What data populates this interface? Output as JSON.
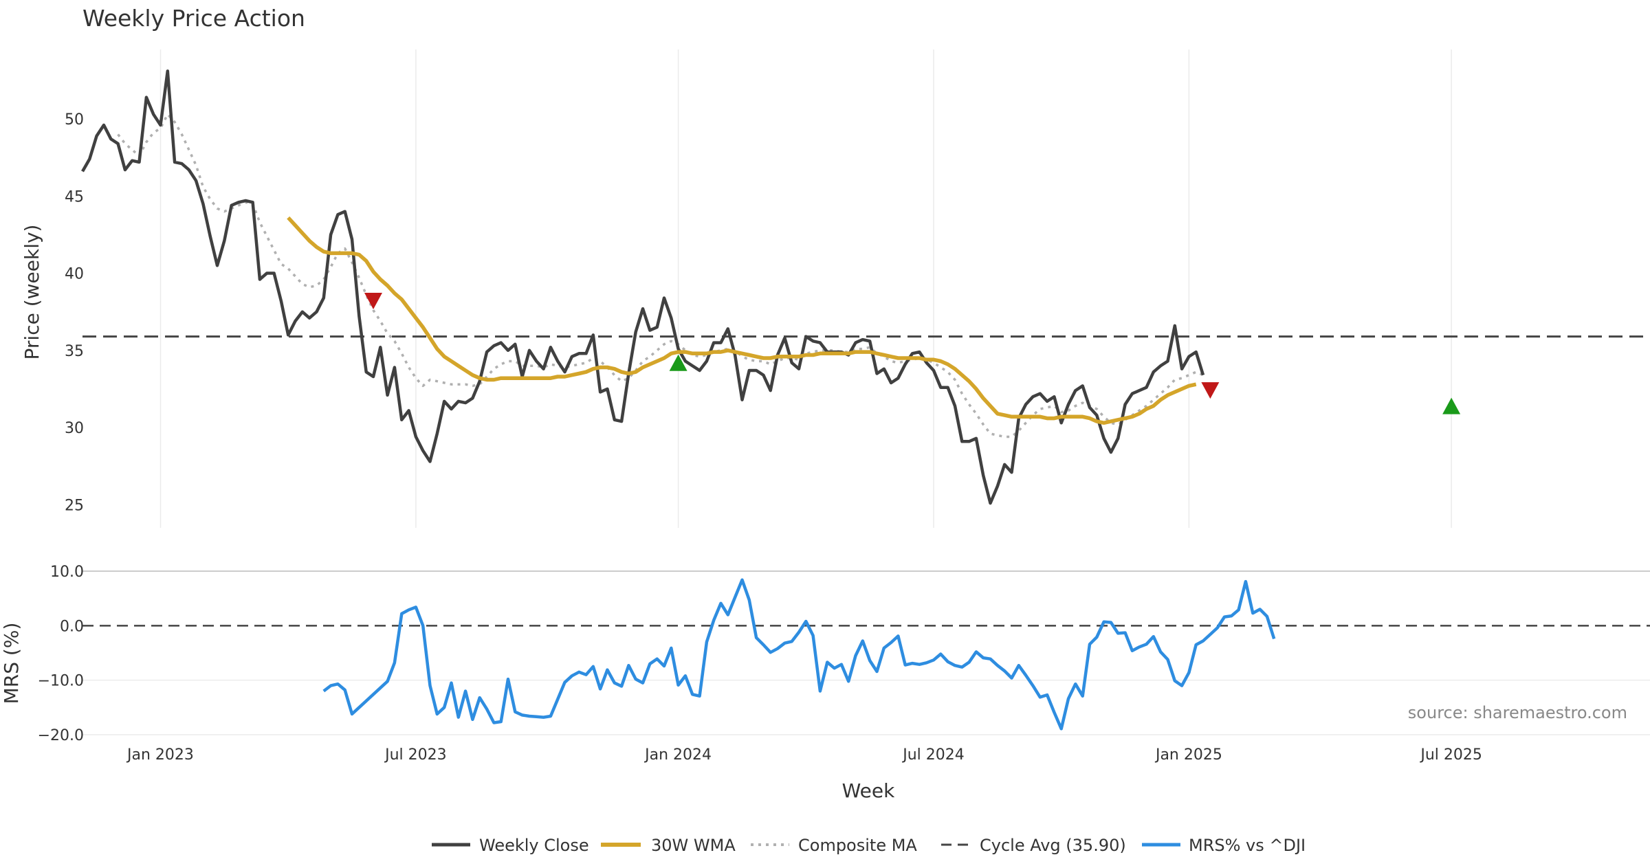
{
  "chart_data": {
    "type": "line",
    "title": "Weekly Price Action",
    "xlabel": "Week",
    "x_ticks": [
      "Jan 2023",
      "Jul 2023",
      "Jan 2024",
      "Jul 2024",
      "Jan 2025",
      "Jul 2025"
    ],
    "x_tick_weeks": [
      11,
      47,
      84,
      120,
      156,
      193
    ],
    "x_range": [
      0,
      221
    ],
    "price_panel": {
      "ylabel": "Price (weekly)",
      "ylim": [
        23.5,
        54.5
      ],
      "yticks": [
        "25",
        "30",
        "35",
        "40",
        "45",
        "50"
      ],
      "ytick_values": [
        25,
        30,
        35,
        40,
        45,
        50
      ],
      "series": [
        {
          "name": "Weekly Close",
          "color": "#404040",
          "values": [
            46.6,
            47.4,
            48.9,
            49.6,
            48.7,
            48.4,
            46.7,
            47.3,
            47.2,
            51.4,
            50.3,
            49.6,
            53.1,
            47.2,
            47.1,
            46.7,
            46.0,
            44.5,
            42.4,
            40.5,
            42.1,
            44.4,
            44.6,
            44.7,
            44.6,
            39.6,
            40.0,
            40.0,
            38.2,
            36.0,
            36.9,
            37.5,
            37.1,
            37.5,
            38.4,
            42.5,
            43.8,
            44.0,
            42.2,
            37.2,
            33.6,
            33.3,
            35.2,
            32.1,
            33.9,
            30.5,
            31.1,
            29.4,
            28.5,
            27.8,
            29.6,
            31.7,
            31.2,
            31.7,
            31.6,
            31.9,
            33.0,
            34.9,
            35.3,
            35.5,
            35.0,
            35.4,
            33.3,
            35.0,
            34.3,
            33.8,
            35.2,
            34.3,
            33.6,
            34.6,
            34.8,
            34.8,
            36.0,
            32.3,
            32.5,
            30.5,
            30.4,
            33.5,
            36.2,
            37.7,
            36.3,
            36.5,
            38.4,
            37.1,
            35.1,
            34.3,
            34.0,
            33.7,
            34.3,
            35.5,
            35.5,
            36.4,
            34.7,
            31.8,
            33.7,
            33.7,
            33.4,
            32.4,
            34.7,
            35.8,
            34.2,
            33.8,
            35.9,
            35.6,
            35.5,
            34.9,
            34.9,
            34.9,
            34.7,
            35.5,
            35.7,
            35.6,
            33.5,
            33.8,
            32.9,
            33.2,
            34.1,
            34.8,
            34.9,
            34.2,
            33.7,
            32.6,
            32.6,
            31.4,
            29.1,
            29.1,
            29.3,
            26.9,
            25.1,
            26.2,
            27.6,
            27.1,
            30.6,
            31.5,
            32.0,
            32.2,
            31.7,
            32.0,
            30.3,
            31.5,
            32.4,
            32.7,
            31.3,
            30.8,
            29.3,
            28.4,
            29.3,
            31.5,
            32.2,
            32.4,
            32.6,
            33.6,
            34.0,
            34.3,
            36.6,
            33.8,
            34.6,
            34.9,
            33.4
          ]
        },
        {
          "name": "30W WMA",
          "color": "#d4a52a",
          "values": [
            null,
            null,
            null,
            null,
            null,
            null,
            null,
            null,
            null,
            null,
            null,
            null,
            null,
            null,
            null,
            null,
            null,
            null,
            null,
            null,
            null,
            null,
            null,
            null,
            null,
            null,
            null,
            null,
            null,
            43.6,
            43.1,
            42.6,
            42.1,
            41.7,
            41.4,
            41.3,
            41.3,
            41.3,
            41.3,
            41.2,
            40.8,
            40.1,
            39.6,
            39.2,
            38.7,
            38.3,
            37.7,
            37.1,
            36.5,
            35.8,
            35.1,
            34.6,
            34.3,
            34.0,
            33.7,
            33.4,
            33.2,
            33.1,
            33.1,
            33.2,
            33.2,
            33.2,
            33.2,
            33.2,
            33.2,
            33.2,
            33.2,
            33.3,
            33.3,
            33.4,
            33.5,
            33.6,
            33.8,
            33.9,
            33.9,
            33.8,
            33.6,
            33.5,
            33.6,
            33.9,
            34.1,
            34.3,
            34.5,
            34.8,
            34.9,
            34.9,
            34.8,
            34.8,
            34.8,
            34.9,
            34.9,
            35.0,
            34.9,
            34.8,
            34.7,
            34.6,
            34.5,
            34.5,
            34.6,
            34.6,
            34.6,
            34.6,
            34.7,
            34.7,
            34.8,
            34.8,
            34.8,
            34.8,
            34.8,
            34.9,
            34.9,
            34.9,
            34.8,
            34.7,
            34.6,
            34.5,
            34.5,
            34.5,
            34.5,
            34.4,
            34.4,
            34.3,
            34.1,
            33.8,
            33.4,
            33.0,
            32.5,
            31.9,
            31.4,
            30.9,
            30.8,
            30.7,
            30.7,
            30.7,
            30.7,
            30.7,
            30.6,
            30.6,
            30.7,
            30.7,
            30.7,
            30.7,
            30.6,
            30.4,
            30.3,
            30.4,
            30.5,
            30.6,
            30.7,
            30.9,
            31.2,
            31.4,
            31.8,
            32.1,
            32.3,
            32.5,
            32.7,
            32.8
          ]
        },
        {
          "name": "Composite MA",
          "color": "#b0b0b0",
          "values": [
            null,
            null,
            null,
            null,
            null,
            49.0,
            48.4,
            48.0,
            47.6,
            48.5,
            49.1,
            49.4,
            50.3,
            49.8,
            49.0,
            48.0,
            47.0,
            45.6,
            44.8,
            44.2,
            44.0,
            44.2,
            44.4,
            44.6,
            44.5,
            43.3,
            42.4,
            41.5,
            40.6,
            40.3,
            39.8,
            39.3,
            39.1,
            39.2,
            39.6,
            40.4,
            41.3,
            41.6,
            40.7,
            39.7,
            38.6,
            37.6,
            36.9,
            36.1,
            35.6,
            34.8,
            33.9,
            33.2,
            32.7,
            33.1,
            33.0,
            32.9,
            32.8,
            32.8,
            32.8,
            32.7,
            32.8,
            33.3,
            33.8,
            34.1,
            34.3,
            34.3,
            34.0,
            34.0,
            34.0,
            33.9,
            34.1,
            34.0,
            33.9,
            34.0,
            34.1,
            34.2,
            34.5,
            34.3,
            33.9,
            33.4,
            33.0,
            33.2,
            33.7,
            34.3,
            34.6,
            35.0,
            35.4,
            35.6,
            35.4,
            35.0,
            34.7,
            34.6,
            34.7,
            34.9,
            35.0,
            35.1,
            35.0,
            34.6,
            34.4,
            34.3,
            34.3,
            34.1,
            34.3,
            34.5,
            34.5,
            34.4,
            34.8,
            34.9,
            35.0,
            35.0,
            35.0,
            34.9,
            34.9,
            35.1,
            35.1,
            35.2,
            34.8,
            34.6,
            34.3,
            34.2,
            34.3,
            34.4,
            34.5,
            34.4,
            34.2,
            33.9,
            33.6,
            33.1,
            32.2,
            31.5,
            30.9,
            30.2,
            29.6,
            29.5,
            29.4,
            29.4,
            29.8,
            30.3,
            30.8,
            31.2,
            31.3,
            31.4,
            31.0,
            31.1,
            31.4,
            31.6,
            31.4,
            31.2,
            30.7,
            30.3,
            30.2,
            30.5,
            30.8,
            31.1,
            31.4,
            31.8,
            32.2,
            32.6,
            33.1,
            33.2,
            33.4,
            33.6,
            33.4
          ]
        },
        {
          "name": "Cycle Avg (35.90)",
          "color": "#444444",
          "value": 35.9
        }
      ],
      "signals": [
        {
          "type": "sell",
          "week": 41,
          "price": 38.2,
          "color": "#c01818"
        },
        {
          "type": "buy",
          "week": 84,
          "price": 34.2,
          "color": "#1a9a1a"
        },
        {
          "type": "sell",
          "week": 159,
          "price": 32.4,
          "color": "#c01818"
        },
        {
          "type": "buy",
          "week": 193,
          "price": 31.4,
          "color": "#1a9a1a"
        }
      ]
    },
    "mrs_panel": {
      "ylabel": "MRS (%)",
      "ylim": [
        -20,
        10
      ],
      "yticks": [
        "10.0",
        "0.0",
        "−10.0",
        "−20.0"
      ],
      "ytick_values": [
        10,
        0,
        -10,
        -20
      ],
      "series": [
        {
          "name": "MRS% vs ^DJI",
          "color": "#2e8de0",
          "start_week": 34,
          "values": [
            -12.0,
            -11.0,
            -10.7,
            -11.8,
            -16.2,
            -15.0,
            -13.8,
            -12.6,
            -11.4,
            -10.2,
            -6.8,
            2.2,
            2.9,
            3.4,
            0.0,
            -11.0,
            -16.2,
            -15.0,
            -10.5,
            -16.8,
            -12.0,
            -17.2,
            -13.2,
            -15.3,
            -17.8,
            -17.6,
            -9.8,
            -15.8,
            -16.4,
            -16.6,
            -16.7,
            -16.8,
            -16.6,
            -13.5,
            -10.4,
            -9.2,
            -8.5,
            -9.0,
            -7.5,
            -11.6,
            -8.1,
            -10.5,
            -11.1,
            -7.3,
            -9.8,
            -10.5,
            -7.0,
            -6.1,
            -7.4,
            -4.1,
            -10.9,
            -9.2,
            -12.6,
            -12.9,
            -3.0,
            1.0,
            4.1,
            2.0,
            5.2,
            8.4,
            4.7,
            -2.2,
            -3.5,
            -4.9,
            -4.2,
            -3.2,
            -2.9,
            -1.2,
            0.8,
            -1.8,
            -12.0,
            -6.7,
            -7.8,
            -7.1,
            -10.2,
            -5.5,
            -2.8,
            -6.4,
            -8.4,
            -4.1,
            -3.1,
            -1.9,
            -7.2,
            -6.9,
            -7.1,
            -6.8,
            -6.3,
            -5.2,
            -6.6,
            -7.3,
            -7.6,
            -6.7,
            -4.8,
            -5.9,
            -6.1,
            -7.3,
            -8.3,
            -9.6,
            -7.3,
            -9.1,
            -11.0,
            -13.1,
            -12.7,
            -15.9,
            -18.9,
            -13.4,
            -10.7,
            -12.9,
            -3.4,
            -2.1,
            0.7,
            0.6,
            -1.4,
            -1.3,
            -4.6,
            -3.9,
            -3.4,
            -2.0,
            -4.8,
            -6.2,
            -10.1,
            -11.0,
            -8.6,
            -3.5,
            -2.8,
            -1.6,
            -0.4,
            1.6,
            1.8,
            2.9,
            8.1,
            2.3,
            3.0,
            1.7,
            -2.4
          ]
        },
        {
          "name": "zero-line",
          "value": 0.0
        }
      ]
    },
    "legend": {
      "position": "bottom",
      "entries": [
        "Weekly Close",
        "30W WMA",
        "Composite MA",
        "Cycle Avg (35.90)",
        "MRS% vs ^DJI"
      ]
    },
    "annotations": [
      "source: sharemaestro.com"
    ]
  }
}
